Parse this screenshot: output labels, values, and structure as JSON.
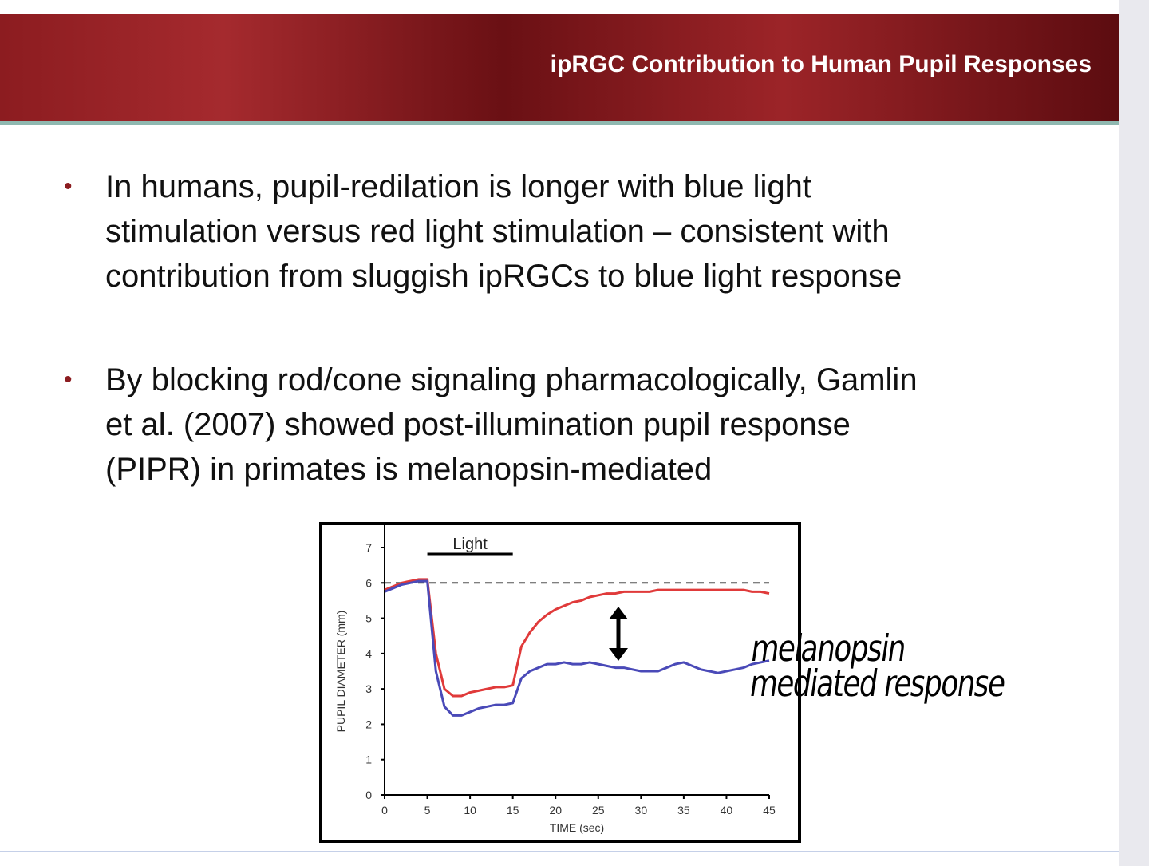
{
  "header": {
    "title": "ipRGC Contribution to Human Pupil Responses"
  },
  "bullets": [
    [
      "In humans, pupil-redilation is longer with blue light",
      "stimulation versus red light stimulation – consistent with",
      "contribution from sluggish ipRGCs to blue light response"
    ],
    [
      "By blocking rod/cone signaling pharmacologically, Gamlin",
      "et al. (2007) showed post-illumination pupil response",
      "(PIPR) in primates is melanopsin-mediated"
    ]
  ],
  "annotation": [
    "melanopsin",
    "mediated response"
  ],
  "chart_data": {
    "type": "line",
    "xlabel": "TIME (sec)",
    "ylabel": "PUPIL DIAMETER (mm)",
    "light_label": "Light",
    "light_span": [
      5,
      15
    ],
    "reference_line": 6,
    "x": [
      0,
      1,
      2,
      3,
      4,
      5,
      6,
      7,
      8,
      9,
      10,
      11,
      12,
      13,
      14,
      15,
      16,
      17,
      18,
      19,
      20,
      21,
      22,
      23,
      24,
      25,
      26,
      27,
      28,
      29,
      30,
      31,
      32,
      33,
      34,
      35,
      36,
      37,
      38,
      39,
      40,
      41,
      42,
      43,
      44,
      45
    ],
    "series": [
      {
        "color": "#e03a3a",
        "values": [
          5.8,
          5.9,
          6.0,
          6.05,
          6.1,
          6.1,
          4.0,
          3.0,
          2.8,
          2.8,
          2.9,
          2.95,
          3.0,
          3.05,
          3.05,
          3.1,
          4.2,
          4.6,
          4.9,
          5.1,
          5.25,
          5.35,
          5.45,
          5.5,
          5.6,
          5.65,
          5.7,
          5.7,
          5.75,
          5.75,
          5.75,
          5.75,
          5.8,
          5.8,
          5.8,
          5.8,
          5.8,
          5.8,
          5.8,
          5.8,
          5.8,
          5.8,
          5.8,
          5.75,
          5.75,
          5.7
        ]
      },
      {
        "color": "#4a4ab8",
        "values": [
          5.75,
          5.85,
          5.95,
          6.0,
          6.05,
          6.05,
          3.5,
          2.5,
          2.25,
          2.25,
          2.35,
          2.45,
          2.5,
          2.55,
          2.55,
          2.6,
          3.3,
          3.5,
          3.6,
          3.7,
          3.7,
          3.75,
          3.7,
          3.7,
          3.75,
          3.7,
          3.65,
          3.6,
          3.6,
          3.55,
          3.5,
          3.5,
          3.5,
          3.6,
          3.7,
          3.75,
          3.65,
          3.55,
          3.5,
          3.45,
          3.5,
          3.55,
          3.6,
          3.7,
          3.75,
          3.8
        ]
      }
    ],
    "xlim": [
      0,
      45
    ],
    "xticks": [
      0,
      5,
      10,
      15,
      20,
      25,
      30,
      35,
      40,
      45
    ],
    "ylim": [
      0,
      7
    ],
    "yticks": [
      0,
      1,
      2,
      3,
      4,
      5,
      6,
      7
    ]
  }
}
